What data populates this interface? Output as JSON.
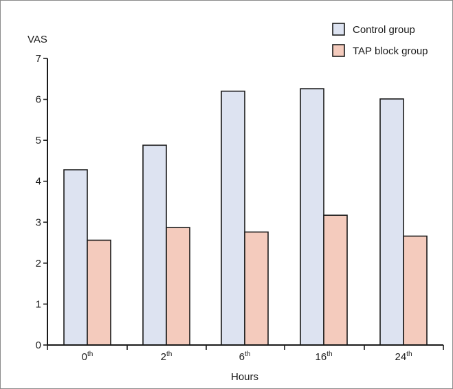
{
  "chart_data": {
    "type": "bar",
    "categories": [
      "0",
      "2",
      "6",
      "16",
      "24"
    ],
    "category_suffix": "th",
    "series": [
      {
        "name": "Control group",
        "values": [
          4.28,
          4.88,
          6.2,
          6.26,
          6.01
        ],
        "color": "#dde3f1"
      },
      {
        "name": "TAP block group",
        "values": [
          2.56,
          2.87,
          2.76,
          3.17,
          2.66
        ],
        "color": "#f4cbbd"
      }
    ],
    "xlabel": "Hours",
    "ylabel": "VAS",
    "ylim": [
      0,
      7
    ],
    "yticks": [
      0,
      1,
      2,
      3,
      4,
      5,
      6,
      7
    ],
    "grid": false,
    "legend": "top-right"
  }
}
